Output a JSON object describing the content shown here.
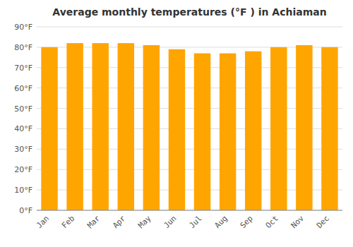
{
  "chart_data": {
    "type": "bar",
    "title": "Average monthly temperatures (°F ) in Achiaman",
    "categories": [
      "Jan",
      "Feb",
      "Mar",
      "Apr",
      "May",
      "Jun",
      "Jul",
      "Aug",
      "Sep",
      "Oct",
      "Nov",
      "Dec"
    ],
    "values": [
      80,
      82,
      82,
      82,
      81,
      79,
      77,
      77,
      78,
      80,
      81,
      80
    ],
    "color": "#FFA500",
    "ylim": [
      0,
      90
    ],
    "yticks": [
      {
        "value": 0,
        "label": "0°F"
      },
      {
        "value": 10,
        "label": "10°F"
      },
      {
        "value": 20,
        "label": "20°F"
      },
      {
        "value": 30,
        "label": "30°F"
      },
      {
        "value": 40,
        "label": "40°F"
      },
      {
        "value": 50,
        "label": "50°F"
      },
      {
        "value": 60,
        "label": "60°F"
      },
      {
        "value": 70,
        "label": "70°F"
      },
      {
        "value": 80,
        "label": "80°F"
      },
      {
        "value": 90,
        "label": "90°F"
      }
    ],
    "grid": true
  }
}
